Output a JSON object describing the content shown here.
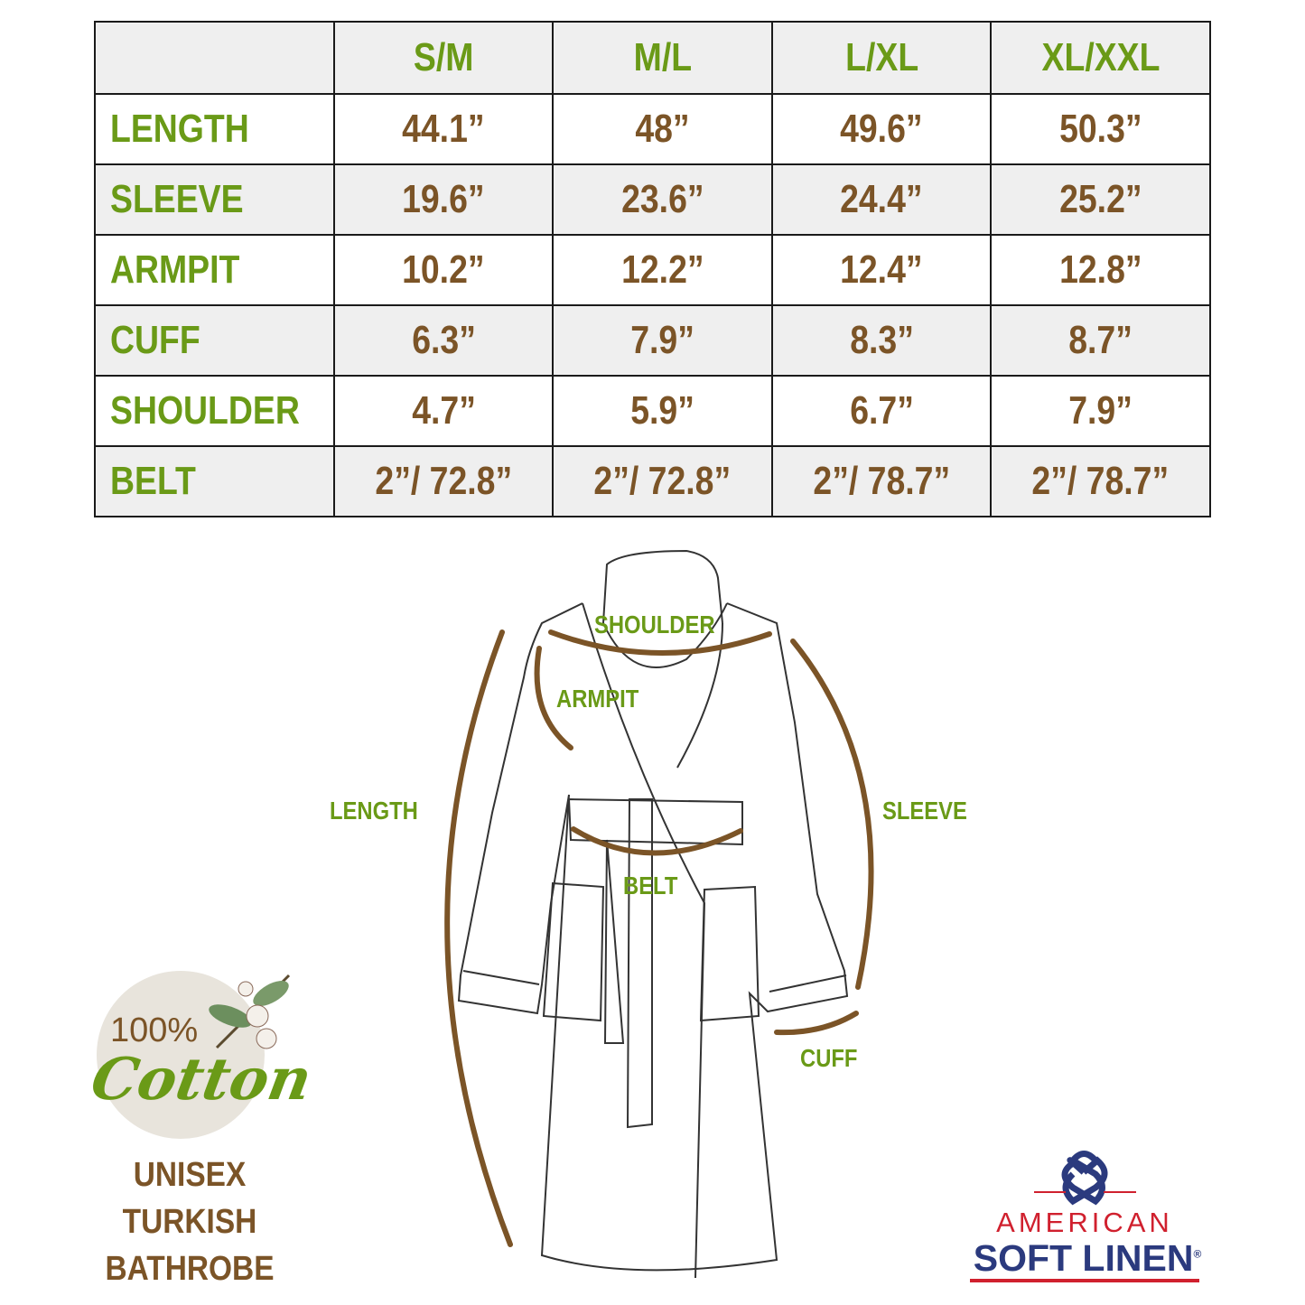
{
  "table": {
    "headers": [
      "",
      "S/M",
      "M/L",
      "L/XL",
      "XL/XXL"
    ],
    "rows": [
      {
        "label": "LENGTH",
        "values": [
          "44.1”",
          "48”",
          "49.6”",
          "50.3”"
        ]
      },
      {
        "label": "SLEEVE",
        "values": [
          "19.6”",
          "23.6”",
          "24.4”",
          "25.2”"
        ]
      },
      {
        "label": "ARMPIT",
        "values": [
          "10.2”",
          "12.2”",
          "12.4”",
          "12.8”"
        ]
      },
      {
        "label": "CUFF",
        "values": [
          "6.3”",
          "7.9”",
          "8.3”",
          "8.7”"
        ]
      },
      {
        "label": "SHOULDER",
        "values": [
          "4.7”",
          "5.9”",
          "6.7”",
          "7.9”"
        ]
      },
      {
        "label": "BELT",
        "values": [
          "2”/ 72.8”",
          "2”/ 72.8”",
          "2”/ 78.7”",
          "2”/ 78.7”"
        ]
      }
    ]
  },
  "diagram": {
    "shoulder": "SHOULDER",
    "armpit": "ARMPIT",
    "length": "LENGTH",
    "sleeve": "SLEEVE",
    "belt": "BELT",
    "cuff": "CUFF"
  },
  "badge": {
    "percent": "100%",
    "material": "Cotton"
  },
  "product": {
    "line1": "UNISEX",
    "line2": "TURKISH",
    "line3": "BATHROBE"
  },
  "brand": {
    "top": "AMERICAN",
    "bottom": "SOFT LINEN",
    "mark": "®"
  },
  "colors": {
    "green": "#6a9a17",
    "brown": "#7b5427",
    "navy": "#2b3a7e",
    "red": "#d0202e"
  }
}
